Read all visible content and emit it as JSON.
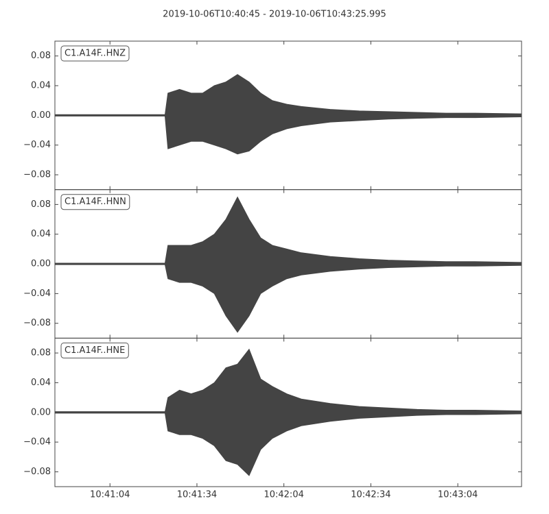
{
  "chart_data": {
    "type": "waveform",
    "title": "2019-10-06T10:40:45  -  2019-10-06T10:43:25.995",
    "color": "#444444",
    "xlim": [
      38445,
      38605.995
    ],
    "xticks": [
      {
        "value": 38464,
        "label": "10:41:04"
      },
      {
        "value": 38494,
        "label": "10:41:34"
      },
      {
        "value": 38524,
        "label": "10:42:04"
      },
      {
        "value": 38554,
        "label": "10:42:34"
      },
      {
        "value": 38584,
        "label": "10:43:04"
      }
    ],
    "x": [
      38445,
      38483,
      38484,
      38488,
      38492,
      38496,
      38500,
      38504,
      38508,
      38512,
      38516,
      38520,
      38525,
      38530,
      38540,
      38550,
      38560,
      38570,
      38580,
      38590,
      38606
    ],
    "panels": [
      {
        "label": "C1.A14F..HNZ",
        "ylim": [
          -0.1,
          0.1
        ],
        "yticks": [
          0.08,
          0.04,
          {
            "value": 0,
            "label": "0.00"
          },
          {
            "value": -0.04,
            "label": "−0.04"
          },
          {
            "value": -0.08,
            "label": "−0.08"
          }
        ],
        "upper": [
          0.001,
          0.001,
          0.03,
          0.035,
          0.03,
          0.03,
          0.04,
          0.045,
          0.055,
          0.045,
          0.03,
          0.02,
          0.015,
          0.012,
          0.008,
          0.006,
          0.005,
          0.004,
          0.003,
          0.003,
          0.002
        ],
        "lower": [
          -0.001,
          -0.001,
          -0.045,
          -0.04,
          -0.035,
          -0.035,
          -0.04,
          -0.045,
          -0.052,
          -0.048,
          -0.035,
          -0.025,
          -0.018,
          -0.014,
          -0.009,
          -0.007,
          -0.005,
          -0.004,
          -0.003,
          -0.003,
          -0.002
        ]
      },
      {
        "label": "C1.A14F..HNN",
        "ylim": [
          -0.1,
          0.1
        ],
        "yticks": [
          0.08,
          0.04,
          {
            "value": 0,
            "label": "0.00"
          },
          {
            "value": -0.04,
            "label": "−0.04"
          },
          {
            "value": -0.08,
            "label": "−0.08"
          }
        ],
        "upper": [
          0.001,
          0.001,
          0.025,
          0.025,
          0.025,
          0.03,
          0.04,
          0.06,
          0.09,
          0.06,
          0.035,
          0.025,
          0.02,
          0.015,
          0.01,
          0.007,
          0.005,
          0.004,
          0.003,
          0.003,
          0.002
        ],
        "lower": [
          -0.001,
          -0.001,
          -0.02,
          -0.025,
          -0.025,
          -0.03,
          -0.04,
          -0.07,
          -0.092,
          -0.07,
          -0.04,
          -0.03,
          -0.02,
          -0.015,
          -0.01,
          -0.007,
          -0.005,
          -0.004,
          -0.003,
          -0.003,
          -0.002
        ]
      },
      {
        "label": "C1.A14F..HNE",
        "ylim": [
          -0.1,
          0.1
        ],
        "yticks": [
          0.08,
          0.04,
          {
            "value": 0,
            "label": "0.00"
          },
          {
            "value": -0.04,
            "label": "−0.04"
          },
          {
            "value": -0.08,
            "label": "−0.08"
          }
        ],
        "upper": [
          0.001,
          0.001,
          0.02,
          0.03,
          0.025,
          0.03,
          0.04,
          0.06,
          0.065,
          0.085,
          0.045,
          0.035,
          0.025,
          0.018,
          0.012,
          0.008,
          0.006,
          0.004,
          0.003,
          0.003,
          0.002
        ],
        "lower": [
          -0.001,
          -0.001,
          -0.025,
          -0.03,
          -0.03,
          -0.035,
          -0.045,
          -0.065,
          -0.07,
          -0.085,
          -0.05,
          -0.035,
          -0.025,
          -0.018,
          -0.012,
          -0.008,
          -0.006,
          -0.004,
          -0.003,
          -0.003,
          -0.002
        ]
      }
    ]
  }
}
